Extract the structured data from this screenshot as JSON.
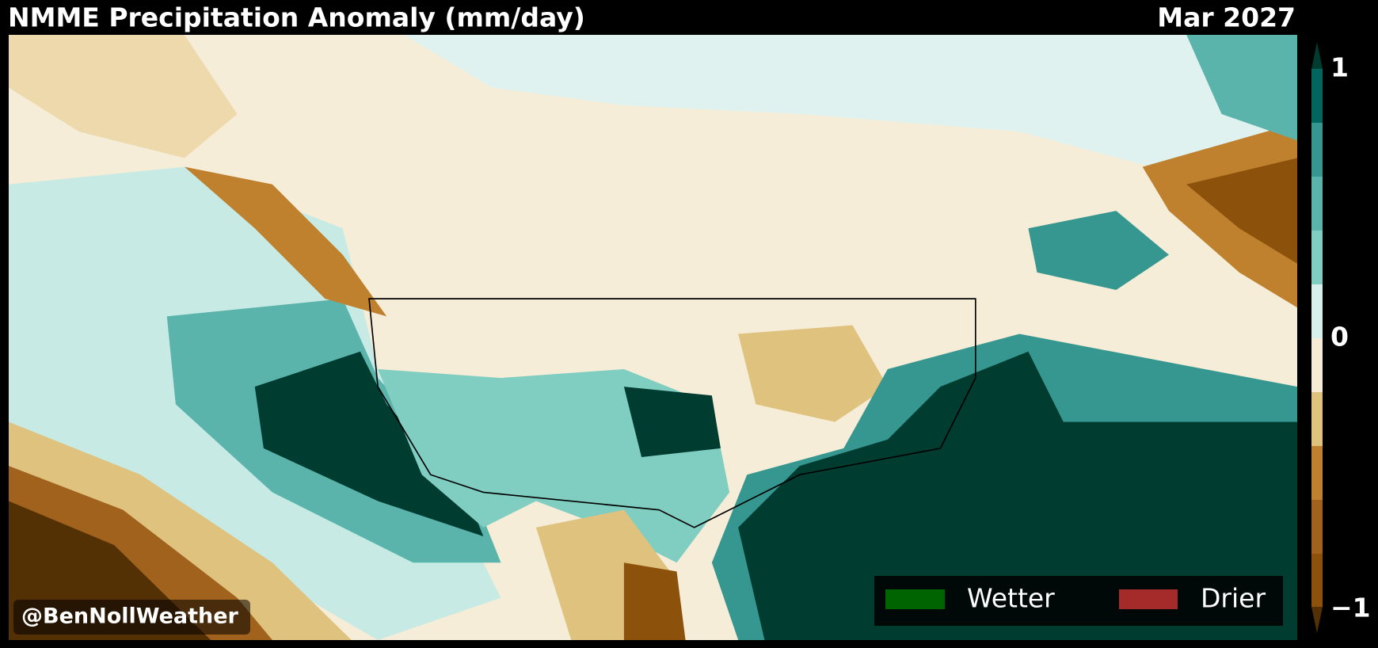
{
  "header": {
    "title": "NMME Precipitation Anomaly (mm/day)",
    "date": "Mar 2027"
  },
  "colorbar": {
    "ticks": [
      "1",
      "0",
      "−1"
    ]
  },
  "legend": {
    "items": [
      "Wetter",
      "Drier"
    ]
  },
  "watermark": "@BenNollWeather"
}
